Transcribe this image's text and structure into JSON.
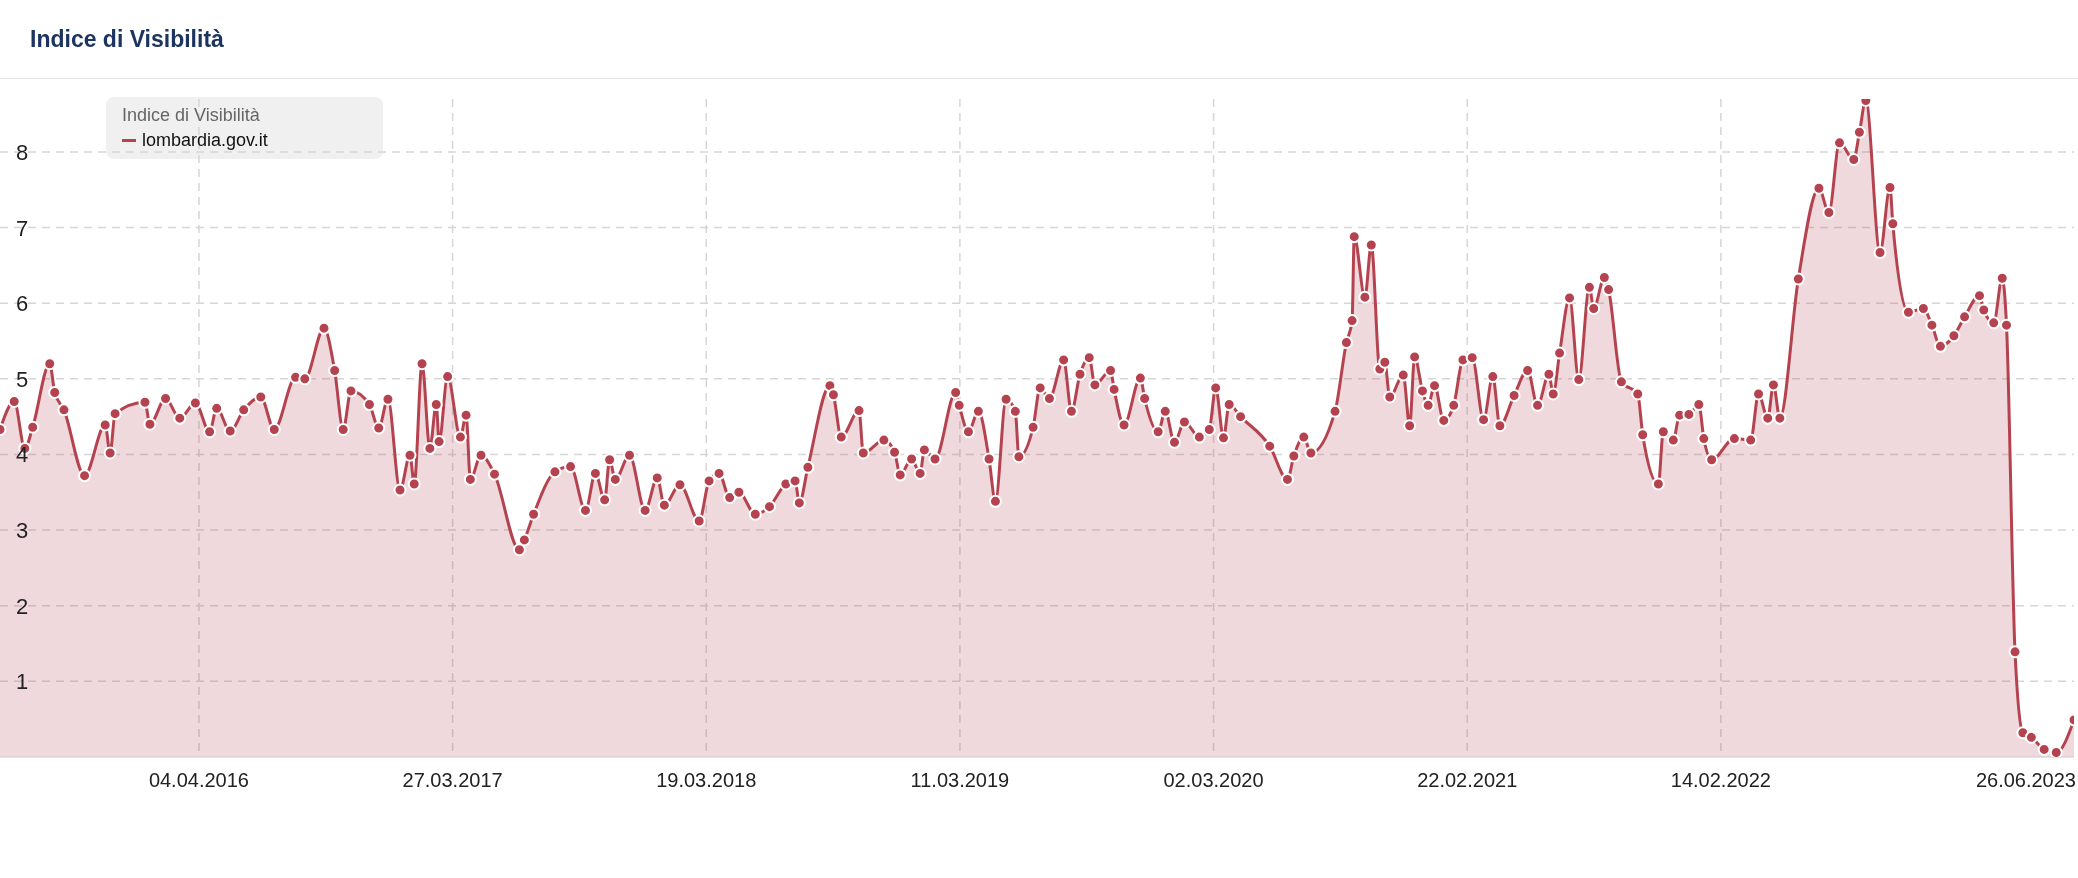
{
  "chart_data": {
    "type": "area",
    "title": "Indice di Visibilità",
    "legend_title": "Indice di Visibilità",
    "legend": "top left",
    "grid": true,
    "marker": "circle",
    "line_style": "solid",
    "xlim": [
      "2015-06-29",
      "2023-06-26"
    ],
    "xticks": [
      {
        "value": "2016-04-04",
        "label": "04.04.2016"
      },
      {
        "value": "2017-03-27",
        "label": "27.03.2017"
      },
      {
        "value": "2018-03-19",
        "label": "19.03.2018"
      },
      {
        "value": "2019-03-11",
        "label": "11.03.2019"
      },
      {
        "value": "2020-03-02",
        "label": "02.03.2020"
      },
      {
        "value": "2021-02-22",
        "label": "22.02.2021"
      },
      {
        "value": "2022-02-14",
        "label": "14.02.2022"
      },
      {
        "value": "2023-06-26",
        "label": "26.06.2023"
      }
    ],
    "ylim": [
      0,
      8.7
    ],
    "yticks": [
      1,
      2,
      3,
      4,
      5,
      6,
      7,
      8
    ],
    "x": [
      "2015-06-29",
      "2015-07-19",
      "2015-08-03",
      "2015-08-14",
      "2015-09-07",
      "2015-09-14",
      "2015-09-27",
      "2015-10-26",
      "2015-11-24",
      "2015-12-01",
      "2015-12-08",
      "2016-01-19",
      "2016-01-26",
      "2016-02-17",
      "2016-03-08",
      "2016-03-30",
      "2016-04-19",
      "2016-04-29",
      "2016-05-18",
      "2016-06-06",
      "2016-06-30",
      "2016-07-19",
      "2016-08-18",
      "2016-08-31",
      "2016-09-27",
      "2016-10-12",
      "2016-10-24",
      "2016-11-04",
      "2016-11-30",
      "2016-12-13",
      "2016-12-26",
      "2017-01-12",
      "2017-01-26",
      "2017-02-01",
      "2017-02-12",
      "2017-02-23",
      "2017-03-04",
      "2017-03-08",
      "2017-03-20",
      "2017-04-07",
      "2017-04-15",
      "2017-04-21",
      "2017-05-06",
      "2017-05-25",
      "2017-06-29",
      "2017-07-06",
      "2017-07-19",
      "2017-08-18",
      "2017-09-09",
      "2017-09-30",
      "2017-10-14",
      "2017-10-27",
      "2017-11-03",
      "2017-11-11",
      "2017-12-01",
      "2017-12-23",
      "2018-01-09",
      "2018-01-19",
      "2018-02-10",
      "2018-03-09",
      "2018-03-23",
      "2018-04-06",
      "2018-04-21",
      "2018-05-04",
      "2018-05-27",
      "2018-06-16",
      "2018-07-09",
      "2018-07-22",
      "2018-07-28",
      "2018-08-09",
      "2018-09-09",
      "2018-09-14",
      "2018-09-25",
      "2018-10-20",
      "2018-10-26",
      "2018-11-24",
      "2018-12-09",
      "2018-12-17",
      "2019-01-02",
      "2019-01-14",
      "2019-01-20",
      "2019-02-04",
      "2019-03-05",
      "2019-03-10",
      "2019-03-23",
      "2019-04-06",
      "2019-04-21",
      "2019-04-30",
      "2019-05-15",
      "2019-05-28",
      "2019-06-02",
      "2019-06-22",
      "2019-07-02",
      "2019-07-15",
      "2019-08-04",
      "2019-08-15",
      "2019-08-27",
      "2019-09-09",
      "2019-09-17",
      "2019-10-09",
      "2019-10-14",
      "2019-10-28",
      "2019-11-20",
      "2019-11-26",
      "2019-12-15",
      "2019-12-25",
      "2020-01-07",
      "2020-01-21",
      "2020-02-11",
      "2020-02-25",
      "2020-03-05",
      "2020-03-16",
      "2020-03-24",
      "2020-04-09",
      "2020-05-20",
      "2020-06-14",
      "2020-06-23",
      "2020-07-07",
      "2020-07-17",
      "2020-08-20",
      "2020-09-05",
      "2020-09-13",
      "2020-09-16",
      "2020-10-01",
      "2020-10-10",
      "2020-10-22",
      "2020-10-29",
      "2020-11-05",
      "2020-11-24",
      "2020-12-03",
      "2020-12-10",
      "2020-12-21",
      "2020-12-29",
      "2021-01-07",
      "2021-01-20",
      "2021-02-03",
      "2021-02-16",
      "2021-03-01",
      "2021-03-17",
      "2021-03-30",
      "2021-04-09",
      "2021-04-29",
      "2021-05-18",
      "2021-06-01",
      "2021-06-17",
      "2021-06-23",
      "2021-07-02",
      "2021-07-16",
      "2021-07-29",
      "2021-08-13",
      "2021-08-19",
      "2021-09-03",
      "2021-09-09",
      "2021-09-27",
      "2021-10-20",
      "2021-10-27",
      "2021-11-18",
      "2021-11-25",
      "2021-12-09",
      "2021-12-18",
      "2021-12-31",
      "2022-01-14",
      "2022-01-21",
      "2022-02-01",
      "2022-03-05",
      "2022-03-28",
      "2022-04-08",
      "2022-04-21",
      "2022-04-29",
      "2022-05-08",
      "2022-06-03",
      "2022-07-02",
      "2022-07-16",
      "2022-07-31",
      "2022-08-20",
      "2022-08-28",
      "2022-09-06",
      "2022-09-26",
      "2022-10-10",
      "2022-10-14",
      "2022-11-05",
      "2022-11-26",
      "2022-12-08",
      "2022-12-20",
      "2023-01-08",
      "2023-01-23",
      "2023-02-13",
      "2023-02-19",
      "2023-03-05",
      "2023-03-17",
      "2023-03-23",
      "2023-04-04",
      "2023-04-15",
      "2023-04-27",
      "2023-05-15",
      "2023-06-01",
      "2023-06-26"
    ],
    "series": [
      {
        "name": "lombardia.gov.it",
        "color": "#b5434f",
        "values": [
          4.33,
          4.7,
          4.08,
          4.36,
          5.2,
          4.82,
          4.59,
          3.72,
          4.39,
          4.02,
          4.54,
          4.69,
          4.4,
          4.74,
          4.48,
          4.68,
          4.3,
          4.61,
          4.31,
          4.59,
          4.76,
          4.33,
          5.02,
          5.0,
          5.67,
          5.11,
          4.33,
          4.84,
          4.66,
          4.35,
          4.73,
          3.53,
          3.99,
          3.61,
          5.2,
          4.08,
          4.66,
          4.17,
          5.03,
          4.23,
          4.52,
          3.67,
          3.99,
          3.74,
          2.74,
          2.87,
          3.21,
          3.77,
          3.84,
          3.26,
          3.75,
          3.4,
          3.93,
          3.67,
          3.99,
          3.26,
          3.69,
          3.33,
          3.6,
          3.12,
          3.65,
          3.75,
          3.43,
          3.5,
          3.21,
          3.31,
          3.61,
          3.65,
          3.36,
          3.83,
          4.91,
          4.79,
          4.23,
          4.58,
          4.02,
          4.19,
          4.03,
          3.73,
          3.94,
          3.75,
          4.06,
          3.94,
          4.82,
          4.65,
          4.3,
          4.57,
          3.94,
          3.38,
          4.73,
          4.57,
          3.97,
          4.36,
          4.88,
          4.74,
          5.25,
          4.57,
          5.06,
          5.28,
          4.92,
          5.11,
          4.86,
          4.39,
          5.01,
          4.74,
          4.3,
          4.57,
          4.16,
          4.43,
          4.23,
          4.33,
          4.88,
          4.22,
          4.66,
          4.5,
          4.11,
          3.67,
          3.98,
          4.23,
          4.02,
          4.57,
          5.48,
          5.77,
          6.88,
          6.08,
          6.77,
          5.13,
          5.22,
          4.76,
          5.05,
          4.38,
          5.29,
          4.84,
          4.65,
          4.91,
          4.45,
          4.65,
          5.25,
          5.28,
          4.46,
          5.03,
          4.38,
          4.78,
          5.11,
          4.65,
          5.06,
          4.8,
          5.34,
          6.07,
          4.99,
          6.21,
          5.93,
          6.34,
          6.18,
          4.96,
          4.8,
          4.26,
          3.61,
          4.3,
          4.19,
          4.52,
          4.53,
          4.66,
          4.21,
          3.93,
          4.21,
          4.19,
          4.8,
          4.48,
          4.92,
          4.48,
          6.32,
          7.52,
          7.2,
          8.12,
          7.9,
          8.26,
          8.68,
          6.67,
          7.53,
          7.05,
          5.88,
          5.93,
          5.71,
          5.43,
          5.57,
          5.82,
          6.1,
          5.91,
          5.74,
          6.33,
          5.71,
          1.39,
          0.32,
          0.26,
          0.1,
          0.06,
          0.49
        ]
      }
    ]
  }
}
